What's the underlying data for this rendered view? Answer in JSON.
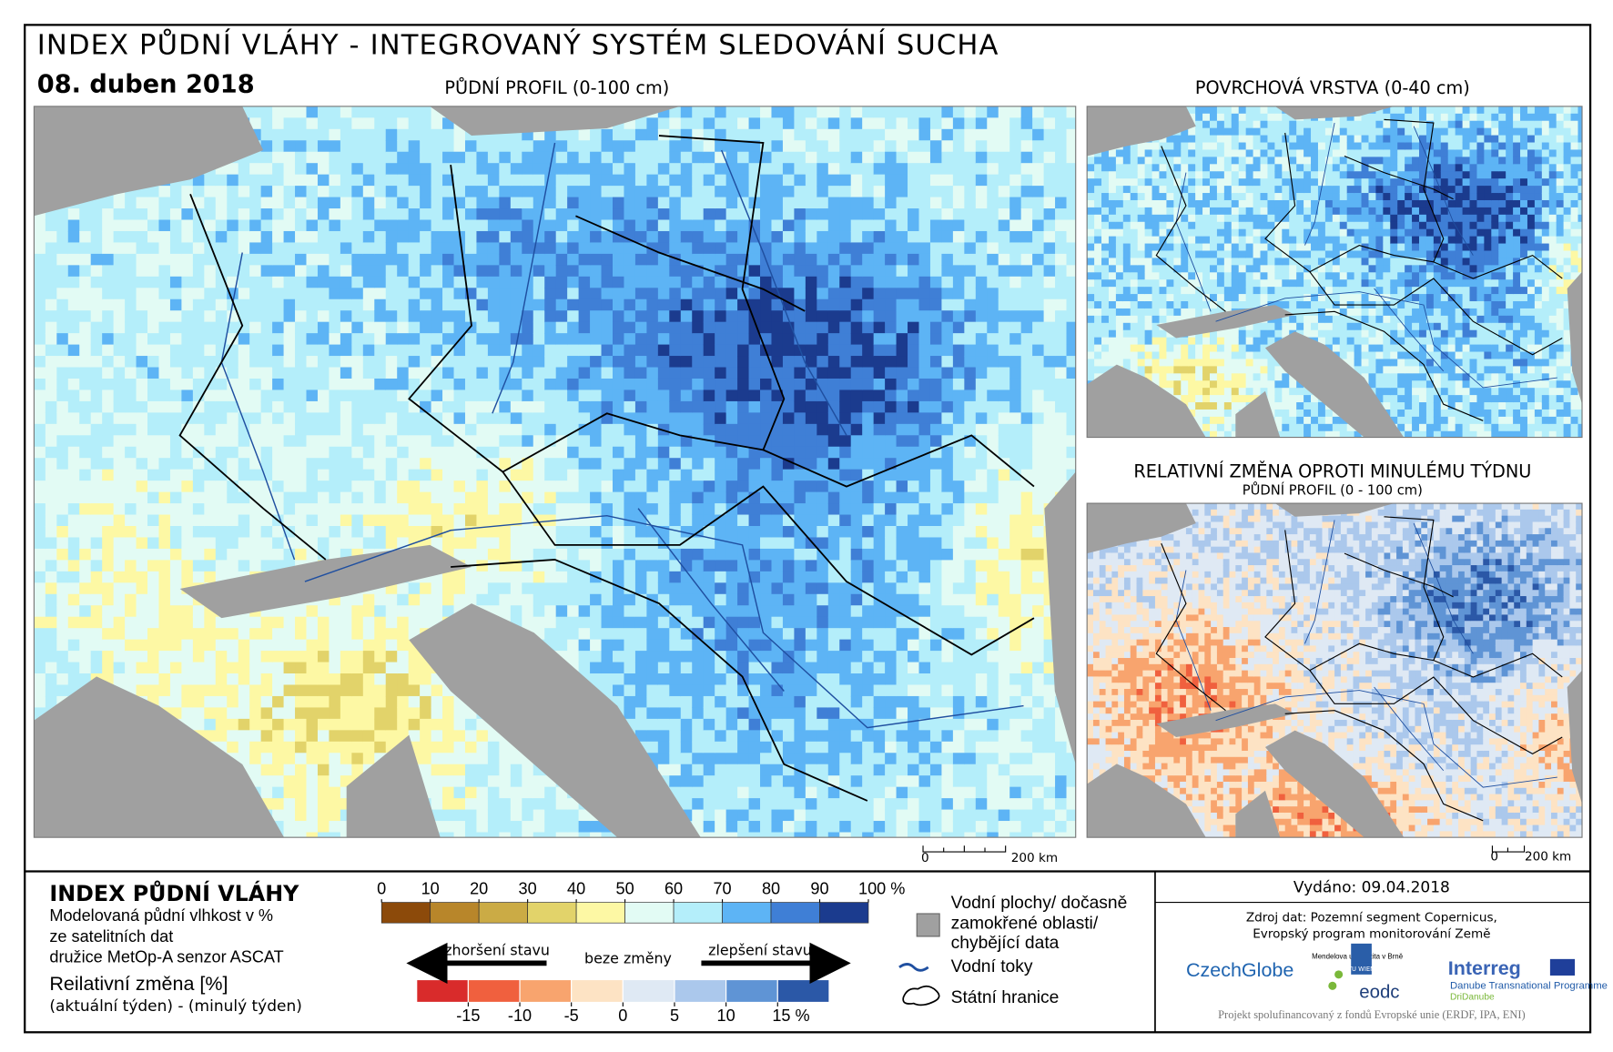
{
  "header": {
    "title": "INDEX PŮDNÍ VLÁHY - INTEGROVANÝ SYSTÉM SLEDOVÁNÍ SUCHA",
    "date": "08. duben 2018"
  },
  "maps": {
    "main": {
      "title": "PŮDNÍ PROFIL (0-100 cm)"
    },
    "surface": {
      "title": "POVRCHOVÁ VRSTVA (0-40 cm)"
    },
    "change": {
      "title": "RELATIVNÍ ZMĚNA OPROTI MINULÉMU TÝDNU",
      "subtitle": "PŮDNÍ PROFIL (0 - 100 cm)"
    }
  },
  "scale_bars": [
    {
      "start": "0",
      "end": "200 km"
    },
    {
      "start": "0",
      "end": "200 km"
    }
  ],
  "legend": {
    "moisture": {
      "title": "INDEX PŮDNÍ VLÁHY",
      "description": [
        "Modelovaná půdní vlhkost v %",
        "ze satelitních dat",
        "družice MetOp-A senzor ASCAT"
      ],
      "ticks": [
        0,
        10,
        20,
        30,
        40,
        50,
        60,
        70,
        80,
        90,
        {
          "value": 100,
          "label": "100 %"
        }
      ],
      "colors": [
        "#8c4a0a",
        "#b8862a",
        "#cbab45",
        "#e2d36a",
        "#fdf8a4",
        "#e2fbf4",
        "#b4eefa",
        "#5db4f5",
        "#3f7fd6",
        "#1b3b8e"
      ]
    },
    "change": {
      "title": "Reilativní změna [%]",
      "subtitle": "(aktuální týden) - (minulý týden)",
      "worse": "zhoršení stavu",
      "none": "beze změny",
      "better": "zlepšení stavu",
      "ticks": [
        -15,
        -10,
        -5,
        0,
        5,
        10,
        {
          "value": 15,
          "label": "15 %"
        }
      ],
      "colors": [
        "#d92b2b",
        "#f0603e",
        "#f8a46e",
        "#fde3c4",
        "#dfe9f4",
        "#abc8ec",
        "#5f94d5",
        "#2b58a7"
      ]
    },
    "symbols": {
      "water": [
        "Vodní plochy/ dočasně",
        "zamokřené oblasti/",
        "chybějící data"
      ],
      "rivers": "Vodní toky",
      "borders": "Státní hranice"
    }
  },
  "footer": {
    "issued": "Vydáno: 09.04.2018",
    "source": [
      "Zdroj dat: Pozemní segment Copernicus,",
      "Evropský program monitorování Země"
    ],
    "logos": {
      "czechglobe": "CzechGlobe",
      "mendel": "Mendelova univerzita v Brně",
      "tuwien": "TU WIEN",
      "eodc": "eodc",
      "interreg": "Interreg",
      "programme": "Danube Transnational Programme",
      "project": "DriDanube"
    },
    "funding": "Projekt spolufinancovaný z fondů Evropské unie (ERDF, IPA, ENI)"
  }
}
